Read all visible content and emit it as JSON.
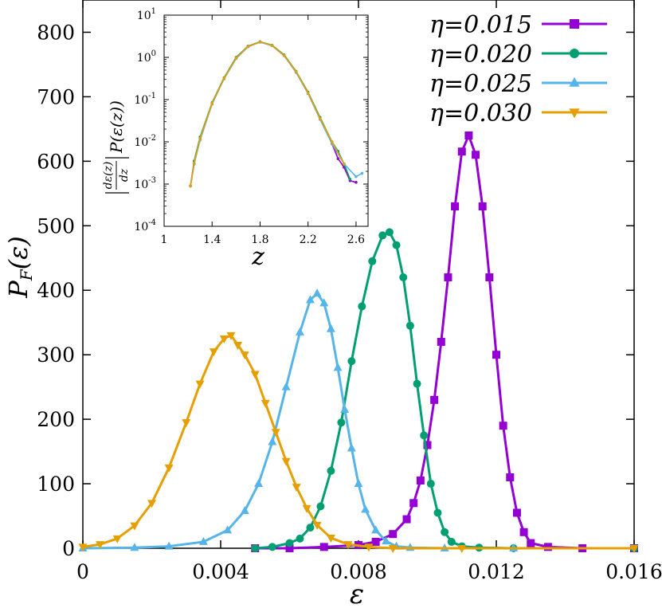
{
  "chart_data": [
    {
      "type": "line",
      "xlabel": "ε",
      "ylabel_main": "P",
      "ylabel_sub": "F",
      "ylabel_arg": "(ε)",
      "xlim": [
        0,
        0.016
      ],
      "ylim": [
        0,
        850
      ],
      "xticks": [
        0,
        0.004,
        0.008,
        0.012,
        0.016
      ],
      "xtick_labels": [
        "0",
        "0.004",
        "0.008",
        "0.012",
        "0.016"
      ],
      "yticks": [
        0,
        100,
        200,
        300,
        400,
        500,
        600,
        700,
        800
      ],
      "ytick_labels": [
        "0",
        "100",
        "200",
        "300",
        "400",
        "500",
        "600",
        "700",
        "800"
      ],
      "legend_position": "top-right",
      "series": [
        {
          "name": "η=0.015",
          "color": "#9400d3",
          "marker": "square",
          "x": [
            0.005,
            0.006,
            0.007,
            0.008,
            0.0085,
            0.009,
            0.0094,
            0.0096,
            0.0098,
            0.01,
            0.0102,
            0.0104,
            0.0106,
            0.0108,
            0.011,
            0.0112,
            0.0114,
            0.0116,
            0.0118,
            0.012,
            0.0122,
            0.0124,
            0.0126,
            0.0128,
            0.013,
            0.0135,
            0.0145,
            0.016
          ],
          "y": [
            0,
            0,
            2,
            5,
            10,
            22,
            45,
            70,
            105,
            160,
            230,
            320,
            420,
            530,
            615,
            640,
            610,
            530,
            420,
            300,
            190,
            110,
            55,
            25,
            8,
            2,
            0,
            0
          ]
        },
        {
          "name": "η=0.020",
          "color": "#009e73",
          "marker": "circle",
          "x": [
            0.005,
            0.0055,
            0.006,
            0.0063,
            0.0066,
            0.0069,
            0.0072,
            0.0075,
            0.0078,
            0.0081,
            0.0084,
            0.0087,
            0.0089,
            0.0091,
            0.0093,
            0.0095,
            0.0097,
            0.0099,
            0.0101,
            0.0103,
            0.0105,
            0.0107,
            0.011,
            0.0115,
            0.0125,
            0.016
          ],
          "y": [
            0,
            2,
            8,
            15,
            32,
            65,
            120,
            195,
            290,
            375,
            445,
            485,
            490,
            470,
            420,
            345,
            255,
            175,
            100,
            55,
            25,
            10,
            3,
            1,
            0,
            0
          ]
        },
        {
          "name": "η=0.025",
          "color": "#56b4e9",
          "marker": "triangle-up",
          "x": [
            0.0,
            0.0015,
            0.0025,
            0.0035,
            0.0042,
            0.0047,
            0.0051,
            0.0055,
            0.0059,
            0.0063,
            0.0066,
            0.0068,
            0.007,
            0.0072,
            0.0074,
            0.0076,
            0.0078,
            0.008,
            0.0082,
            0.0085,
            0.0088,
            0.0091,
            0.0095,
            0.0105,
            0.0125
          ],
          "y": [
            0,
            1,
            3,
            10,
            28,
            58,
            100,
            165,
            250,
            335,
            385,
            395,
            380,
            340,
            280,
            215,
            155,
            100,
            60,
            28,
            11,
            3,
            1,
            0,
            0
          ]
        },
        {
          "name": "η=0.030",
          "color": "#e69f00",
          "marker": "triangle-down",
          "x": [
            0.0,
            0.0005,
            0.001,
            0.0015,
            0.002,
            0.0025,
            0.003,
            0.0034,
            0.0038,
            0.0041,
            0.0043,
            0.0045,
            0.0047,
            0.005,
            0.0053,
            0.0056,
            0.0059,
            0.0062,
            0.0065,
            0.0068,
            0.0072,
            0.0077,
            0.0083,
            0.009,
            0.011,
            0.016
          ],
          "y": [
            2,
            6,
            15,
            35,
            70,
            125,
            195,
            255,
            305,
            325,
            330,
            315,
            300,
            270,
            225,
            180,
            135,
            95,
            62,
            36,
            16,
            6,
            2,
            0,
            0,
            0
          ]
        }
      ]
    },
    {
      "type": "line",
      "inset": true,
      "xlabel": "z",
      "ylabel": "|dε(z)/dz| P(ε(z))",
      "ylabel_pieces": {
        "num": "dε(z)",
        "den": "dz",
        "rest": "P(ε(z))"
      },
      "xlim": [
        1,
        2.7
      ],
      "ylim_log10": [
        -4,
        1
      ],
      "yscale": "log",
      "xticks": [
        1,
        1.4,
        1.8,
        2.2,
        2.6
      ],
      "xtick_labels": [
        "1",
        "1.4",
        "1.8",
        "2.2",
        "2.6"
      ],
      "yticks_exp": [
        1,
        0,
        -1,
        -2,
        -3,
        -4
      ],
      "ytick_base": "10",
      "ytick_exp_labels": [
        "1",
        "0",
        "-1",
        "-2",
        "-3",
        "-4"
      ],
      "series": [
        {
          "name": "η=0.015",
          "color": "#9400d3",
          "x": [
            1.22,
            1.25,
            1.3,
            1.4,
            1.5,
            1.6,
            1.7,
            1.8,
            1.9,
            2.0,
            2.1,
            2.2,
            2.3,
            2.4,
            2.45,
            2.5,
            2.55,
            2.6
          ],
          "y": [
            0.0009,
            0.003,
            0.012,
            0.08,
            0.32,
            0.95,
            1.8,
            2.3,
            1.9,
            1.1,
            0.45,
            0.14,
            0.035,
            0.009,
            0.004,
            0.0025,
            0.0012,
            0.0011
          ]
        },
        {
          "name": "η=0.020",
          "color": "#009e73",
          "x": [
            1.22,
            1.25,
            1.3,
            1.4,
            1.5,
            1.6,
            1.7,
            1.8,
            1.9,
            2.0,
            2.1,
            2.2,
            2.3,
            2.4,
            2.45,
            2.5,
            2.55
          ],
          "y": [
            0.0009,
            0.0035,
            0.013,
            0.085,
            0.33,
            1.0,
            1.85,
            2.35,
            1.95,
            1.15,
            0.47,
            0.15,
            0.038,
            0.01,
            0.006,
            0.003,
            0.0013
          ]
        },
        {
          "name": "η=0.025",
          "color": "#56b4e9",
          "x": [
            1.22,
            1.25,
            1.3,
            1.4,
            1.5,
            1.6,
            1.7,
            1.8,
            1.9,
            2.0,
            2.1,
            2.2,
            2.3,
            2.4,
            2.5,
            2.6,
            2.65
          ],
          "y": [
            0.0009,
            0.003,
            0.011,
            0.078,
            0.31,
            0.93,
            1.8,
            2.3,
            1.9,
            1.1,
            0.44,
            0.14,
            0.034,
            0.009,
            0.003,
            0.0015,
            0.0018
          ]
        },
        {
          "name": "η=0.030",
          "color": "#e69f00",
          "x": [
            1.22,
            1.25,
            1.3,
            1.4,
            1.5,
            1.6,
            1.7,
            1.8,
            1.9,
            2.0,
            2.1,
            2.2,
            2.3,
            2.4,
            2.5
          ],
          "y": [
            0.0009,
            0.0032,
            0.012,
            0.082,
            0.32,
            0.96,
            1.82,
            2.32,
            1.92,
            1.12,
            0.46,
            0.145,
            0.036,
            0.01,
            0.003
          ]
        }
      ]
    }
  ]
}
